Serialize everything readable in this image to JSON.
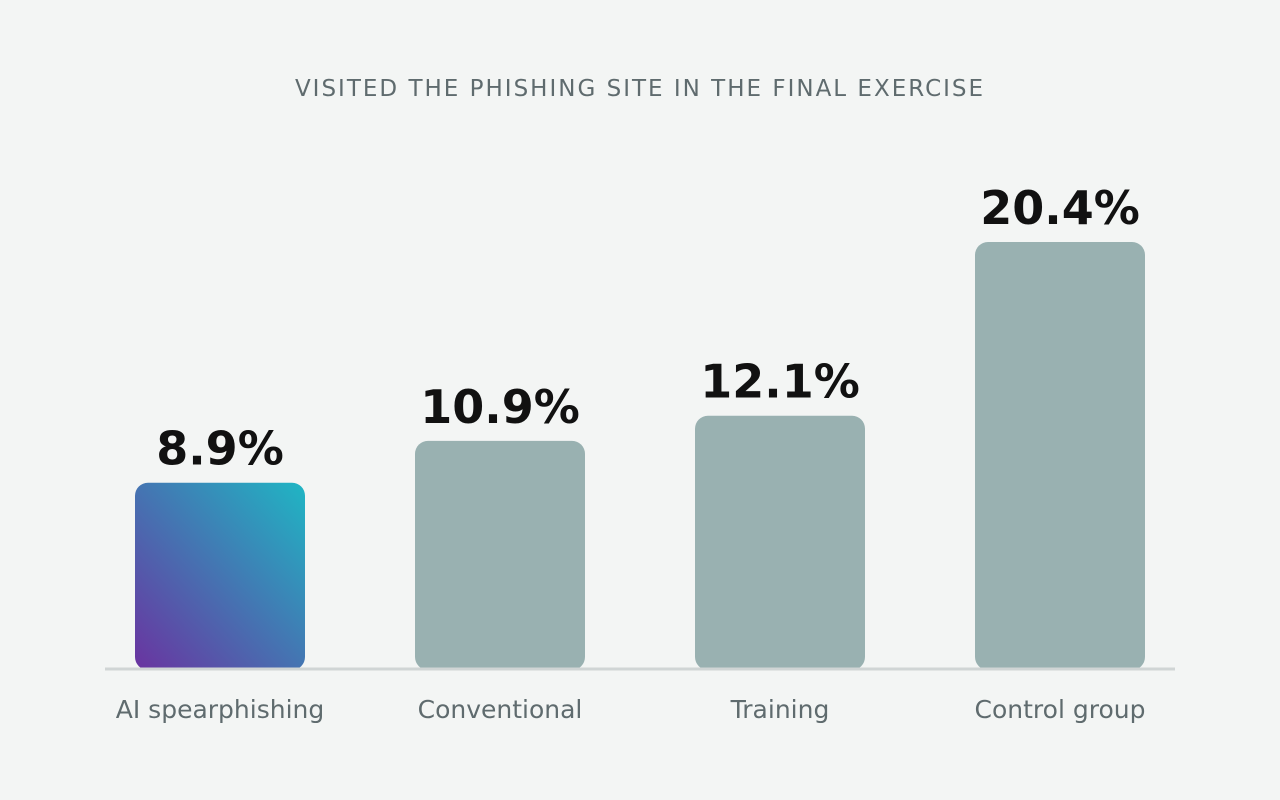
{
  "chart_data": {
    "type": "bar",
    "title": "VISITED THE PHISHING SITE IN THE FINAL EXERCISE",
    "xlabel": "",
    "ylabel": "",
    "ylim": [
      0,
      20.4
    ],
    "grid": false,
    "categories": [
      "AI spearphishing",
      "Conventional",
      "Training",
      "Control group"
    ],
    "values": [
      8.9,
      10.9,
      12.1,
      20.4
    ],
    "value_labels": [
      "8.9%",
      "10.9%",
      "12.1%",
      "20.4%"
    ],
    "colors": {
      "highlight_start": "#6a33a0",
      "highlight_end": "#1fb6c4",
      "bar": "#99b1b1",
      "baseline": "#d0d5d5"
    }
  }
}
